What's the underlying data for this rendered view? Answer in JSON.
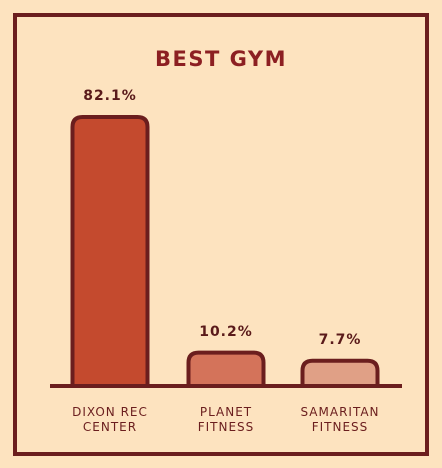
{
  "chart_data": {
    "type": "bar",
    "title": "BEST GYM",
    "categories": [
      "DIXON REC CENTER",
      "PLANET FITNESS",
      "SAMARITAN FITNESS"
    ],
    "values": [
      82.1,
      10.2,
      7.7
    ],
    "value_labels": [
      "82.1%",
      "10.2%",
      "7.7%"
    ],
    "colors": [
      "#c44a2e",
      "#d4735a",
      "#e0a086"
    ]
  }
}
